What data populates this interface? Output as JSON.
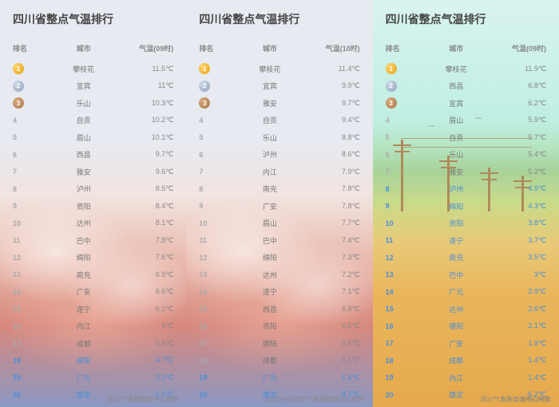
{
  "title": "四川省整点气温排行",
  "headers": {
    "rank": "排名",
    "city": "城市",
    "temp09": "气温(09时)",
    "temp10": "气温(10时)"
  },
  "footer": "四川气象融媒体中心制作",
  "watermark": "@四川气象",
  "panels": [
    {
      "tempHeader": "气温(09时)",
      "bg": "clouds",
      "rows": [
        {
          "rank": "1",
          "medal": 1,
          "city": "攀枝花",
          "temp": "11.5℃"
        },
        {
          "rank": "2",
          "medal": 2,
          "city": "宜宾",
          "temp": "11℃"
        },
        {
          "rank": "3",
          "medal": 3,
          "city": "乐山",
          "temp": "10.3℃"
        },
        {
          "rank": "4",
          "city": "自贡",
          "temp": "10.2℃"
        },
        {
          "rank": "5",
          "city": "眉山",
          "temp": "10.1℃"
        },
        {
          "rank": "6",
          "city": "西昌",
          "temp": "9.7℃"
        },
        {
          "rank": "7",
          "city": "雅安",
          "temp": "9.6℃"
        },
        {
          "rank": "8",
          "city": "泸州",
          "temp": "8.5℃"
        },
        {
          "rank": "9",
          "city": "资阳",
          "temp": "8.4℃"
        },
        {
          "rank": "10",
          "city": "达州",
          "temp": "8.1℃"
        },
        {
          "rank": "11",
          "city": "巴中",
          "temp": "7.8℃"
        },
        {
          "rank": "12",
          "city": "绵阳",
          "temp": "7.6℃"
        },
        {
          "rank": "13",
          "city": "南充",
          "temp": "6.9℃"
        },
        {
          "rank": "14",
          "city": "广安",
          "temp": "6.6℃"
        },
        {
          "rank": "15",
          "city": "遂宁",
          "temp": "6.2℃"
        },
        {
          "rank": "16",
          "city": "内江",
          "temp": "6℃"
        },
        {
          "rank": "17",
          "city": "成都",
          "temp": "5.6℃"
        },
        {
          "rank": "18",
          "city": "德阳",
          "temp": "4.7℃",
          "blue": true
        },
        {
          "rank": "19",
          "city": "广元",
          "temp": "2.1℃",
          "blue": true
        },
        {
          "rank": "20",
          "city": "康定",
          "temp": "-1.1℃",
          "blue": true
        },
        {
          "rank": "21",
          "city": "马尔康",
          "temp": "-3.3℃",
          "blue": true
        }
      ]
    },
    {
      "tempHeader": "气温(10时)",
      "bg": "clouds",
      "rows": [
        {
          "rank": "1",
          "medal": 1,
          "city": "攀枝花",
          "temp": "11.4℃"
        },
        {
          "rank": "2",
          "medal": 2,
          "city": "宜宾",
          "temp": "9.9℃"
        },
        {
          "rank": "3",
          "medal": 3,
          "city": "雅安",
          "temp": "9.7℃"
        },
        {
          "rank": "4",
          "city": "自贡",
          "temp": "9.4℃"
        },
        {
          "rank": "5",
          "city": "乐山",
          "temp": "8.8℃"
        },
        {
          "rank": "6",
          "city": "泸州",
          "temp": "8.6℃"
        },
        {
          "rank": "7",
          "city": "内江",
          "temp": "7.9℃"
        },
        {
          "rank": "8",
          "city": "南充",
          "temp": "7.8℃"
        },
        {
          "rank": "9",
          "city": "广安",
          "temp": "7.8℃"
        },
        {
          "rank": "10",
          "city": "眉山",
          "temp": "7.7℃"
        },
        {
          "rank": "11",
          "city": "巴中",
          "temp": "7.4℃"
        },
        {
          "rank": "12",
          "city": "绵阳",
          "temp": "7.3℃"
        },
        {
          "rank": "13",
          "city": "达州",
          "temp": "7.2℃"
        },
        {
          "rank": "14",
          "city": "遂宁",
          "temp": "7.1℃"
        },
        {
          "rank": "15",
          "city": "西昌",
          "temp": "6.9℃"
        },
        {
          "rank": "16",
          "city": "资阳",
          "temp": "6.5℃"
        },
        {
          "rank": "17",
          "city": "德阳",
          "temp": "6.5℃"
        },
        {
          "rank": "18",
          "city": "成都",
          "temp": "6.1℃"
        },
        {
          "rank": "19",
          "city": "广元",
          "temp": "1.6℃",
          "blue": true
        },
        {
          "rank": "20",
          "city": "康定",
          "temp": "-4.7℃",
          "blue": true
        },
        {
          "rank": "21",
          "city": "马尔康",
          "temp": "-5.8℃",
          "blue": true
        }
      ]
    },
    {
      "tempHeader": "气温(09时)",
      "bg": "field",
      "rows": [
        {
          "rank": "1",
          "medal": 1,
          "city": "攀枝花",
          "temp": "11.9℃"
        },
        {
          "rank": "2",
          "medal": 2,
          "city": "西昌",
          "temp": "6.8℃"
        },
        {
          "rank": "3",
          "medal": 3,
          "city": "宜宾",
          "temp": "6.2℃"
        },
        {
          "rank": "4",
          "city": "眉山",
          "temp": "5.9℃"
        },
        {
          "rank": "5",
          "city": "自贡",
          "temp": "5.7℃"
        },
        {
          "rank": "6",
          "city": "乐山",
          "temp": "5.4℃"
        },
        {
          "rank": "7",
          "city": "雅安",
          "temp": "5.2℃"
        },
        {
          "rank": "8",
          "city": "泸州",
          "temp": "4.9℃",
          "blue": true
        },
        {
          "rank": "9",
          "city": "绵阳",
          "temp": "4.3℃",
          "blue": true
        },
        {
          "rank": "10",
          "city": "资阳",
          "temp": "3.8℃",
          "blue": true
        },
        {
          "rank": "11",
          "city": "遂宁",
          "temp": "3.7℃",
          "blue": true
        },
        {
          "rank": "12",
          "city": "南充",
          "temp": "3.5℃",
          "blue": true
        },
        {
          "rank": "13",
          "city": "巴中",
          "temp": "3℃",
          "blue": true
        },
        {
          "rank": "14",
          "city": "广元",
          "temp": "2.9℃",
          "blue": true
        },
        {
          "rank": "15",
          "city": "达州",
          "temp": "2.6℃",
          "blue": true
        },
        {
          "rank": "16",
          "city": "德阳",
          "temp": "2.1℃",
          "blue": true
        },
        {
          "rank": "17",
          "city": "广安",
          "temp": "1.9℃",
          "blue": true
        },
        {
          "rank": "18",
          "city": "成都",
          "temp": "1.4℃",
          "blue": true
        },
        {
          "rank": "19",
          "city": "内江",
          "temp": "1.4℃",
          "blue": true
        },
        {
          "rank": "20",
          "city": "康定",
          "temp": "-6.2℃",
          "blue": true
        },
        {
          "rank": "21",
          "city": "马尔康",
          "temp": "-9.7℃",
          "blue": true
        }
      ]
    }
  ]
}
